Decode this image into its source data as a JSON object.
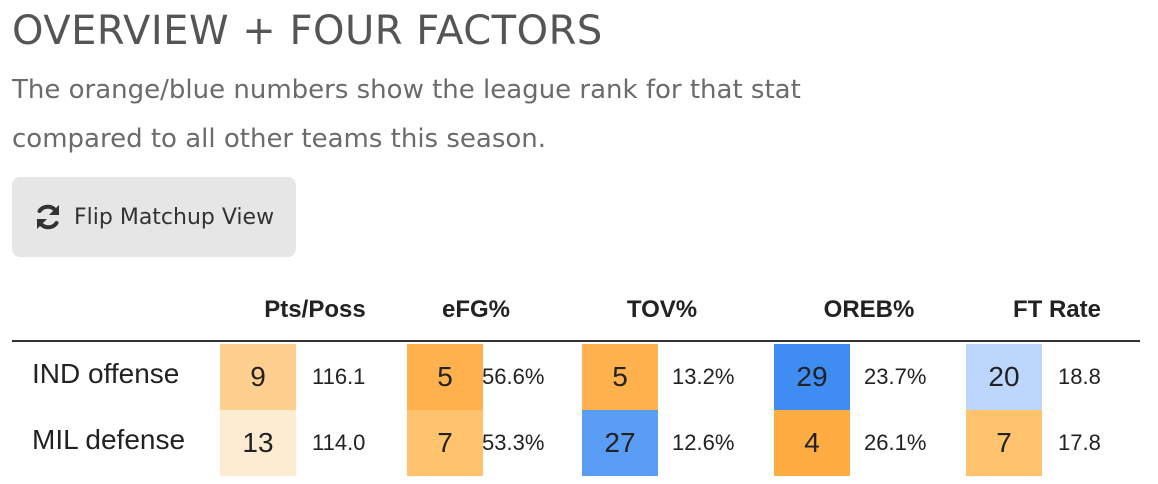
{
  "header": {
    "title": "OVERVIEW + FOUR FACTORS",
    "subtitle": "The orange/blue numbers show the league rank for that stat compared to all other teams this season."
  },
  "toolbar": {
    "flip_label": "Flip Matchup View",
    "flip_icon": "refresh-icon"
  },
  "table": {
    "columns": [
      "Pts/Poss",
      "eFG%",
      "TOV%",
      "OREB%",
      "FT Rate"
    ],
    "rows": [
      {
        "team": "IND offense",
        "cells": [
          {
            "rank": "9",
            "value": "116.1",
            "color": "#ffcf8f"
          },
          {
            "rank": "5",
            "value": "56.6%",
            "color": "#ffb14e"
          },
          {
            "rank": "5",
            "value": "13.2%",
            "color": "#ffb14e"
          },
          {
            "rank": "29",
            "value": "23.7%",
            "color": "#3f8cf2"
          },
          {
            "rank": "20",
            "value": "18.8",
            "color": "#bcd7fb"
          }
        ]
      },
      {
        "team": "MIL defense",
        "cells": [
          {
            "rank": "13",
            "value": "114.0",
            "color": "#fdebd2"
          },
          {
            "rank": "7",
            "value": "53.3%",
            "color": "#ffc36e"
          },
          {
            "rank": "27",
            "value": "12.6%",
            "color": "#5a9df5"
          },
          {
            "rank": "4",
            "value": "26.1%",
            "color": "#ffac42"
          },
          {
            "rank": "7",
            "value": "17.8",
            "color": "#ffc36e"
          }
        ]
      }
    ]
  }
}
